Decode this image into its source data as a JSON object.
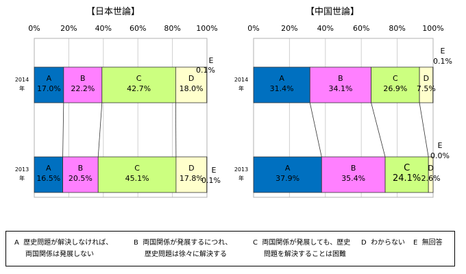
{
  "chart_data": [
    {
      "type": "bar",
      "orientation": "horizontal",
      "stacked": true,
      "title": "【日本世論】",
      "xlim": [
        0,
        100
      ],
      "xticks": [
        "0%",
        "20%",
        "40%",
        "60%",
        "80%",
        "100%"
      ],
      "categories": [
        {
          "year": "2014",
          "suffix": "年"
        },
        {
          "year": "2013",
          "suffix": "年"
        }
      ],
      "series": [
        {
          "name": "A",
          "color": "#0070c0",
          "values": [
            17.0,
            16.5
          ],
          "labels": [
            "17.0%",
            "16.5%"
          ]
        },
        {
          "name": "B",
          "color": "#ff80ff",
          "values": [
            22.2,
            20.5
          ],
          "labels": [
            "22.2%",
            "20.5%"
          ]
        },
        {
          "name": "C",
          "color": "#ccff80",
          "values": [
            42.7,
            45.1
          ],
          "labels": [
            "42.7%",
            "45.1%"
          ]
        },
        {
          "name": "D",
          "color": "#ffffcc",
          "values": [
            18.0,
            17.8
          ],
          "labels": [
            "18.0%",
            "17.8%"
          ]
        },
        {
          "name": "E",
          "color": "#ffffff",
          "values": [
            0.1,
            0.1
          ],
          "labels": [
            "0.1%",
            "0.1%"
          ]
        }
      ]
    },
    {
      "type": "bar",
      "orientation": "horizontal",
      "stacked": true,
      "title": "【中国世論】",
      "xlim": [
        0,
        100
      ],
      "xticks": [
        "0%",
        "20%",
        "40%",
        "60%",
        "80%",
        "100%"
      ],
      "categories": [
        {
          "year": "2014",
          "suffix": "年"
        },
        {
          "year": "2013",
          "suffix": "年"
        }
      ],
      "series": [
        {
          "name": "A",
          "color": "#0070c0",
          "values": [
            31.4,
            37.9
          ],
          "labels": [
            "31.4%",
            "37.9%"
          ]
        },
        {
          "name": "B",
          "color": "#ff80ff",
          "values": [
            34.1,
            35.4
          ],
          "labels": [
            "34.1%",
            "35.4%"
          ]
        },
        {
          "name": "C",
          "color": "#ccff80",
          "values": [
            26.9,
            24.1
          ],
          "labels": [
            "26.9%",
            "24.1%"
          ]
        },
        {
          "name": "D",
          "color": "#ffffcc",
          "values": [
            7.5,
            2.6
          ],
          "labels": [
            "7.5%",
            "2.6%"
          ]
        },
        {
          "name": "E",
          "color": "#ffffff",
          "values": [
            0.1,
            0.0
          ],
          "labels": [
            "0.1%",
            "0.0%"
          ]
        }
      ]
    }
  ],
  "legend": {
    "items": [
      {
        "key": "A",
        "line1": "歴史問題が解決しなければ、",
        "line2": "両国関係は発展しない"
      },
      {
        "key": "B",
        "line1": "両国関係が発展するにつれ、",
        "line2": "歴史問題は徐々に解決する"
      },
      {
        "key": "C",
        "line1": "両国関係が発展しても、歴史",
        "line2": "問題を解決することは困難"
      },
      {
        "key": "D",
        "line1": "わからない",
        "line2": ""
      },
      {
        "key": "E",
        "line1": "無回答",
        "line2": ""
      }
    ]
  }
}
